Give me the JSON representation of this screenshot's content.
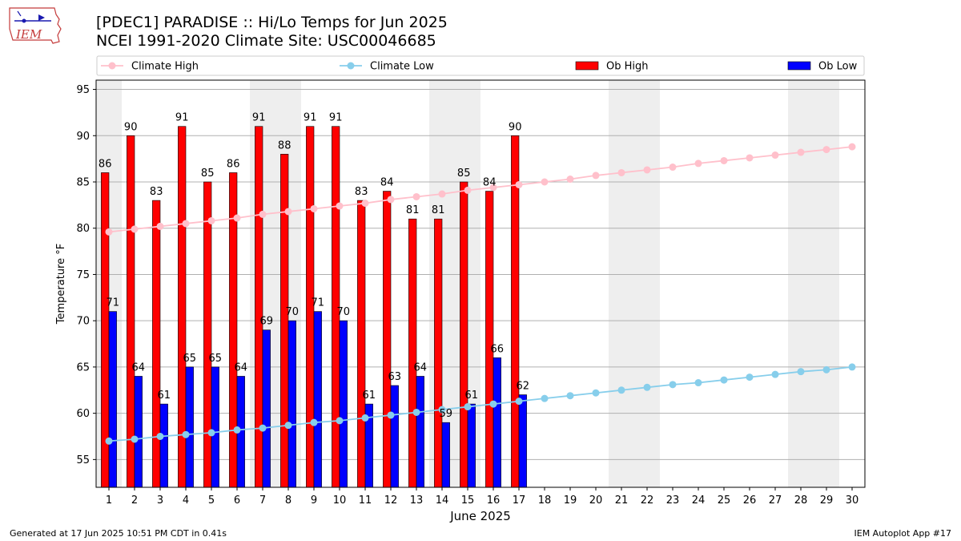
{
  "header": {
    "title": "[PDEC1] PARADISE :: Hi/Lo Temps for Jun 2025",
    "subtitle": "NCEI 1991-2020 Climate Site: USC00046685",
    "logo_text": "IEM"
  },
  "footer": {
    "left": "Generated at 17 Jun 2025 10:51 PM CDT in 0.41s",
    "right": "IEM Autoplot App #17"
  },
  "colors": {
    "ob_high": "#ff0000",
    "ob_low": "#0000ff",
    "climate_high": "#ffc0cb",
    "climate_low": "#87ceeb",
    "weekend_shade": "#eeeeee",
    "grid": "#b0b0b0"
  },
  "chart_data": {
    "type": "bar",
    "xlabel": "June 2025",
    "ylabel": "Temperature °F",
    "ylim": [
      52,
      96
    ],
    "yticks": [
      55,
      60,
      65,
      70,
      75,
      80,
      85,
      90,
      95
    ],
    "grid": "horizontal",
    "legend_position": "top",
    "days": [
      1,
      2,
      3,
      4,
      5,
      6,
      7,
      8,
      9,
      10,
      11,
      12,
      13,
      14,
      15,
      16,
      17,
      18,
      19,
      20,
      21,
      22,
      23,
      24,
      25,
      26,
      27,
      28,
      29,
      30
    ],
    "shaded_days": [
      1,
      7,
      8,
      14,
      15,
      21,
      22,
      28,
      29
    ],
    "series": [
      {
        "name": "Climate High",
        "kind": "line",
        "values": [
          79.6,
          79.9,
          80.2,
          80.5,
          80.8,
          81.1,
          81.5,
          81.8,
          82.1,
          82.4,
          82.7,
          83.1,
          83.4,
          83.7,
          84.1,
          84.4,
          84.7,
          85.0,
          85.3,
          85.7,
          86.0,
          86.3,
          86.6,
          87.0,
          87.3,
          87.6,
          87.9,
          88.2,
          88.5,
          88.8
        ]
      },
      {
        "name": "Climate Low",
        "kind": "line",
        "values": [
          57.0,
          57.2,
          57.5,
          57.7,
          57.9,
          58.2,
          58.4,
          58.7,
          59.0,
          59.2,
          59.5,
          59.8,
          60.1,
          60.4,
          60.7,
          61.0,
          61.3,
          61.6,
          61.9,
          62.2,
          62.5,
          62.8,
          63.1,
          63.3,
          63.6,
          63.9,
          64.2,
          64.5,
          64.7,
          65.0
        ]
      },
      {
        "name": "Ob High",
        "kind": "bar",
        "values": [
          86,
          90,
          83,
          91,
          85,
          86,
          91,
          88,
          91,
          91,
          83,
          84,
          81,
          81,
          85,
          84,
          90
        ]
      },
      {
        "name": "Ob Low",
        "kind": "bar",
        "values": [
          71,
          64,
          61,
          65,
          65,
          64,
          69,
          70,
          71,
          70,
          61,
          63,
          64,
          59,
          61,
          66,
          62
        ]
      }
    ]
  }
}
